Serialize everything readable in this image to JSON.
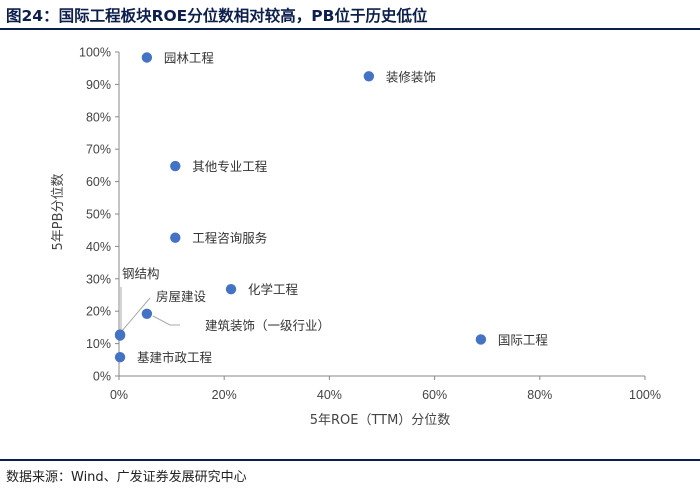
{
  "title": "图24：国际工程板块ROE分位数相对较高，PB位于历史低位",
  "source": "数据来源：Wind、广发证券发展研究中心",
  "chart_data": {
    "type": "scatter",
    "title": "图24：国际工程板块ROE分位数相对较高，PB位于历史低位",
    "xlabel": "5年ROE（TTM）分位数",
    "ylabel": "5年PB分位数",
    "xlim": [
      0,
      1
    ],
    "ylim": [
      0,
      1
    ],
    "x_ticks": [
      "0%",
      "20%",
      "40%",
      "60%",
      "80%",
      "100%"
    ],
    "y_ticks": [
      "0%",
      "10%",
      "20%",
      "30%",
      "40%",
      "50%",
      "60%",
      "70%",
      "80%",
      "90%",
      "100%"
    ],
    "grid": false,
    "color": "#4472c4",
    "points": [
      {
        "label": "园林工程",
        "x": 0.053,
        "y": 0.983
      },
      {
        "label": "装修装饰",
        "x": 0.475,
        "y": 0.925
      },
      {
        "label": "其他专业工程",
        "x": 0.107,
        "y": 0.648
      },
      {
        "label": "工程咨询服务",
        "x": 0.107,
        "y": 0.427
      },
      {
        "label": "化学工程",
        "x": 0.213,
        "y": 0.268
      },
      {
        "label": "国际工程",
        "x": 0.688,
        "y": 0.113
      },
      {
        "label": "钢结构",
        "x": 0.002,
        "y": 0.128
      },
      {
        "label": "房屋建设",
        "x": 0.002,
        "y": 0.125
      },
      {
        "label": "建筑装饰（一级行业）",
        "x": 0.053,
        "y": 0.192
      },
      {
        "label": "基建市政工程",
        "x": 0.002,
        "y": 0.058
      }
    ]
  }
}
